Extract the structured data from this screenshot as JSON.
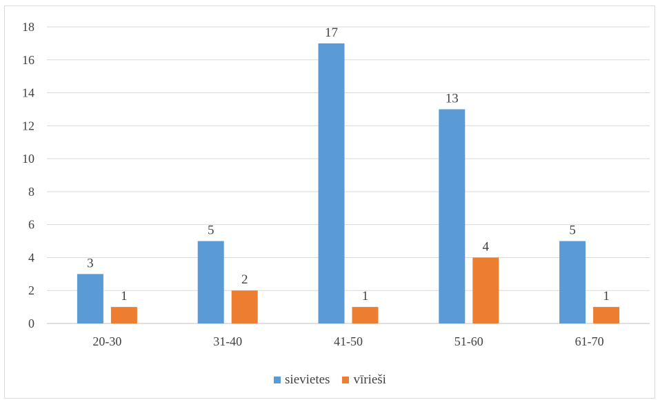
{
  "chart_data": {
    "type": "bar",
    "categories": [
      "20-30",
      "31-40",
      "41-50",
      "51-60",
      "61-70"
    ],
    "series": [
      {
        "name": "sievietes",
        "values": [
          3,
          5,
          17,
          13,
          5
        ],
        "color": "#5b9bd5"
      },
      {
        "name": "vīrieši",
        "values": [
          1,
          2,
          1,
          4,
          1
        ],
        "color": "#ed7d31"
      }
    ],
    "ylim": [
      0,
      18
    ],
    "yticks": [
      "0",
      "2",
      "4",
      "6",
      "8",
      "10",
      "12",
      "14",
      "16",
      "18"
    ],
    "grid": true,
    "legend_position": "bottom",
    "data_labels": true
  }
}
